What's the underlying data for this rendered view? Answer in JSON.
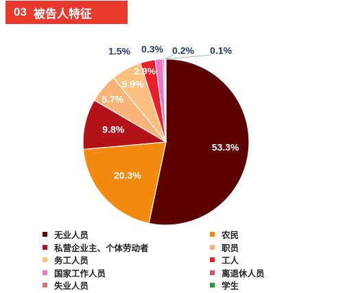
{
  "header": {
    "number": "03",
    "title": "被告人特征",
    "color": "#e8392c"
  },
  "chart_data": {
    "type": "pie",
    "slices": [
      {
        "name": "无业人员",
        "value": 53.3,
        "label": "53.3%",
        "color": "#5c0000"
      },
      {
        "name": "农民",
        "value": 20.3,
        "label": "20.3%",
        "color": "#f28a10"
      },
      {
        "name": "私营企业主、个体劳动者",
        "value": 9.8,
        "label": "9.8%",
        "color": "#b31218"
      },
      {
        "name": "职员",
        "value": 5.7,
        "label": "5.7%",
        "color": "#f8b478"
      },
      {
        "name": "务工人员",
        "value": 5.9,
        "label": "5.9%",
        "color": "#fbbf80"
      },
      {
        "name": "工人",
        "value": 2.9,
        "label": "2.9%",
        "color": "#e8202a"
      },
      {
        "name": "国家工作人员",
        "value": 1.5,
        "label": "1.5%",
        "color": "#f274c8"
      },
      {
        "name": "离退休人员",
        "value": 0.3,
        "label": "0.3%",
        "color": "#d8505a"
      },
      {
        "name": "失业人员",
        "value": 0.2,
        "label": "0.2%",
        "color": "#e87070"
      },
      {
        "name": "学生",
        "value": 0.1,
        "label": "0.1%",
        "color": "#1e9e3a"
      }
    ],
    "legend_position": "bottom"
  }
}
